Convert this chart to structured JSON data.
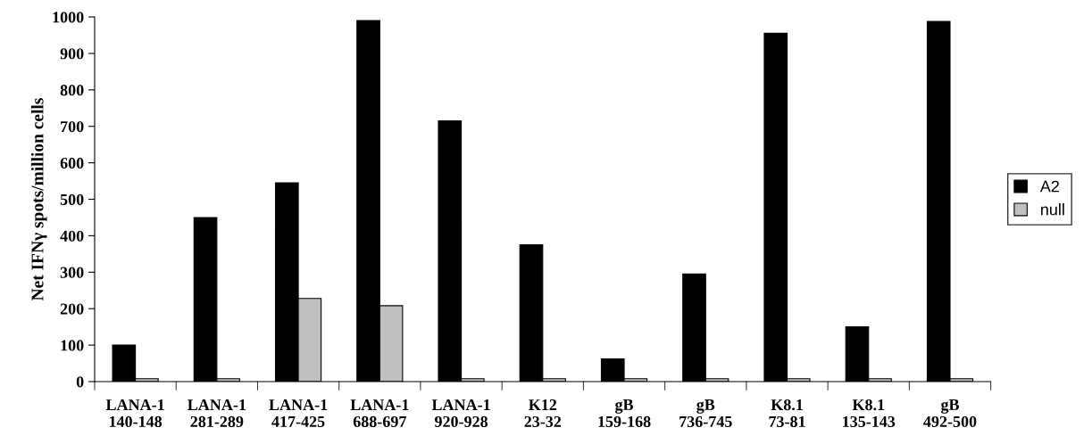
{
  "chart_data": {
    "type": "bar",
    "ylabel": "Net IFNγ spots/million cells",
    "categories": [
      "LANA-1\n140-148",
      "LANA-1\n281-289",
      "LANA-1\n417-425",
      "LANA-1\n688-697",
      "LANA-1\n920-928",
      "K12\n23-32",
      "gB\n159-168",
      "gB\n736-745",
      "K8.1\n73-81",
      "K8.1\n135-143",
      "gB\n492-500"
    ],
    "series": [
      {
        "name": "A2",
        "color": "#000000",
        "values": [
          100,
          450,
          545,
          990,
          715,
          375,
          62,
          295,
          955,
          150,
          988
        ]
      },
      {
        "name": "null",
        "color": "#c0c0c0",
        "values": [
          8,
          8,
          228,
          208,
          8,
          8,
          8,
          8,
          8,
          8,
          8
        ]
      }
    ],
    "ylim": [
      0,
      1000
    ],
    "yticks": [
      0,
      100,
      200,
      300,
      400,
      500,
      600,
      700,
      800,
      900,
      1000
    ],
    "grid": false,
    "legend": "right"
  }
}
